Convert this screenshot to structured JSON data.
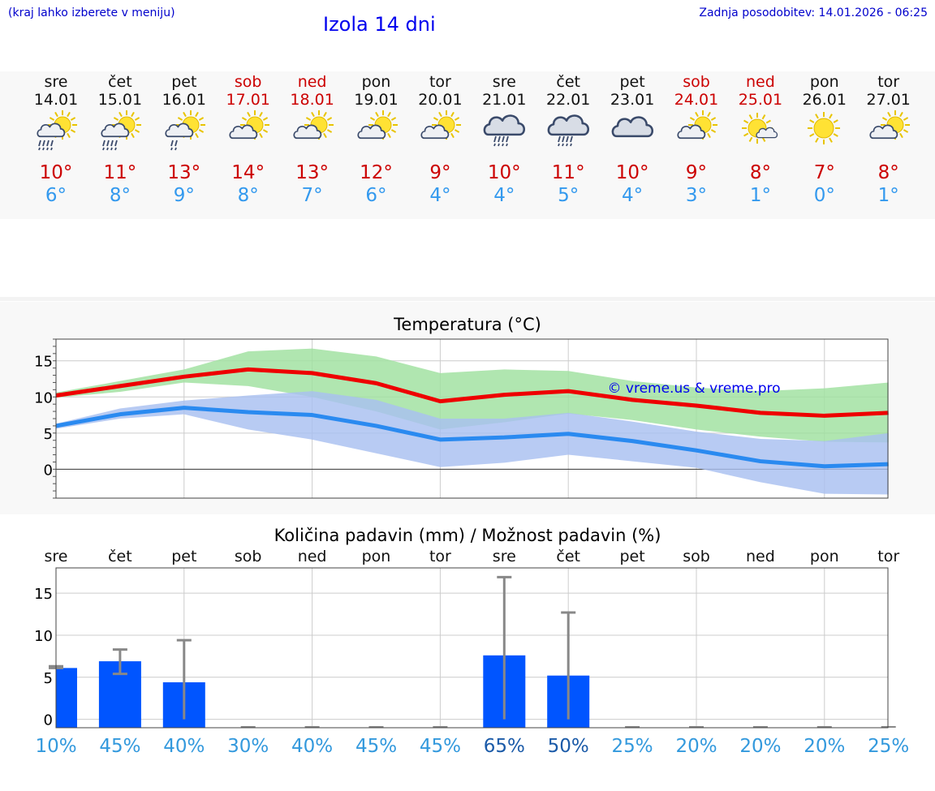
{
  "header": {
    "note": "(kraj lahko izberete v meniju)",
    "title": "Izola 14 dni",
    "updated": "Zadnja posodobitev: 14.01.2026 - 06:25"
  },
  "days": [
    {
      "name": "sre",
      "date": "14.01",
      "weekend": false,
      "icon": "sun-cloud-rain-icon",
      "tmax": "10°",
      "tmin": "6°"
    },
    {
      "name": "čet",
      "date": "15.01",
      "weekend": false,
      "icon": "sun-cloud-rain-icon",
      "tmax": "11°",
      "tmin": "8°"
    },
    {
      "name": "pet",
      "date": "16.01",
      "weekend": false,
      "icon": "sun-cloud-light-rain-icon",
      "tmax": "13°",
      "tmin": "9°"
    },
    {
      "name": "sob",
      "date": "17.01",
      "weekend": true,
      "icon": "sun-cloud-icon",
      "tmax": "14°",
      "tmin": "8°"
    },
    {
      "name": "ned",
      "date": "18.01",
      "weekend": true,
      "icon": "sun-cloud-icon",
      "tmax": "13°",
      "tmin": "7°"
    },
    {
      "name": "pon",
      "date": "19.01",
      "weekend": false,
      "icon": "sun-cloud-icon",
      "tmax": "12°",
      "tmin": "6°"
    },
    {
      "name": "tor",
      "date": "20.01",
      "weekend": false,
      "icon": "sun-cloud-icon",
      "tmax": "9°",
      "tmin": "4°"
    },
    {
      "name": "sre",
      "date": "21.01",
      "weekend": false,
      "icon": "cloud-rain-icon",
      "tmax": "10°",
      "tmin": "4°"
    },
    {
      "name": "čet",
      "date": "22.01",
      "weekend": false,
      "icon": "cloud-rain-icon",
      "tmax": "11°",
      "tmin": "5°"
    },
    {
      "name": "pet",
      "date": "23.01",
      "weekend": false,
      "icon": "cloud-icon",
      "tmax": "10°",
      "tmin": "4°"
    },
    {
      "name": "sob",
      "date": "24.01",
      "weekend": true,
      "icon": "sun-cloud-icon",
      "tmax": "9°",
      "tmin": "3°"
    },
    {
      "name": "ned",
      "date": "25.01",
      "weekend": true,
      "icon": "sun-small-cloud-icon",
      "tmax": "8°",
      "tmin": "1°"
    },
    {
      "name": "pon",
      "date": "26.01",
      "weekend": false,
      "icon": "sun-icon",
      "tmax": "7°",
      "tmin": "0°"
    },
    {
      "name": "tor",
      "date": "27.01",
      "weekend": false,
      "icon": "sun-cloud-icon",
      "tmax": "8°",
      "tmin": "1°"
    }
  ],
  "chart_data": [
    {
      "type": "line",
      "title": "Temperatura (°C)",
      "watermark": "© vreme.us & vreme.pro",
      "x": [
        "14.01",
        "15.01",
        "16.01",
        "17.01",
        "18.01",
        "19.01",
        "20.01",
        "21.01",
        "22.01",
        "23.01",
        "24.01",
        "25.01",
        "26.01",
        "27.01"
      ],
      "ylim": [
        -4,
        18
      ],
      "yticks": [
        "15",
        "10",
        "5",
        "0"
      ],
      "series": [
        {
          "name": "max",
          "color": "#ee0000",
          "values": [
            10.2,
            11.5,
            12.8,
            13.8,
            13.3,
            11.9,
            9.4,
            10.3,
            10.8,
            9.6,
            8.8,
            7.8,
            7.4,
            7.8
          ]
        },
        {
          "name": "min",
          "color": "#2a8af0",
          "values": [
            6.0,
            7.6,
            8.5,
            7.9,
            7.5,
            6.0,
            4.1,
            4.4,
            4.9,
            3.9,
            2.6,
            1.1,
            0.4,
            0.7
          ]
        }
      ],
      "bands": [
        {
          "name": "max-range",
          "color": "#9fe09f",
          "low": [
            9.9,
            10.7,
            12.0,
            11.5,
            10.0,
            8.0,
            5.5,
            6.5,
            7.7,
            6.8,
            5.5,
            4.5,
            3.8,
            3.7
          ],
          "high": [
            10.6,
            12.2,
            13.8,
            16.3,
            16.7,
            15.6,
            13.3,
            13.8,
            13.6,
            12.2,
            11.3,
            10.8,
            11.2,
            12.0
          ]
        },
        {
          "name": "min-range",
          "color": "#a8c0f0",
          "low": [
            5.6,
            7.0,
            7.6,
            5.5,
            4.1,
            2.2,
            0.3,
            0.9,
            2.0,
            1.1,
            0.2,
            -1.8,
            -3.4,
            -3.5
          ],
          "high": [
            6.3,
            8.4,
            9.5,
            10.2,
            10.8,
            9.6,
            7.0,
            7.0,
            7.8,
            6.6,
            5.2,
            4.2,
            3.9,
            5.0
          ]
        }
      ]
    },
    {
      "type": "bar",
      "title": "Količina padavin (mm) / Možnost padavin (%)",
      "categories": [
        "sre",
        "čet",
        "pet",
        "sob",
        "ned",
        "pon",
        "tor",
        "sre",
        "čet",
        "pet",
        "sob",
        "ned",
        "pon",
        "tor"
      ],
      "ylim": [
        -1,
        18
      ],
      "yticks": [
        "15",
        "10",
        "5",
        "0"
      ],
      "values": [
        6.1,
        6.9,
        4.4,
        0,
        0,
        0,
        0,
        7.6,
        5.2,
        0,
        0,
        0,
        0,
        0
      ],
      "error_low": [
        6.1,
        5.4,
        0,
        0,
        0,
        0,
        0,
        0,
        0,
        0,
        0,
        0,
        0,
        0
      ],
      "error_high": [
        6.3,
        8.3,
        9.4,
        0,
        0,
        0,
        0,
        16.9,
        12.7,
        0,
        0,
        0,
        0,
        0
      ],
      "bar_color": "#0055ff",
      "probabilities": [
        "10%",
        "45%",
        "40%",
        "30%",
        "40%",
        "45%",
        "45%",
        "65%",
        "50%",
        "25%",
        "20%",
        "20%",
        "20%",
        "25%"
      ],
      "probability_strong": [
        false,
        false,
        false,
        false,
        false,
        false,
        false,
        true,
        true,
        false,
        false,
        false,
        false,
        false
      ]
    }
  ]
}
